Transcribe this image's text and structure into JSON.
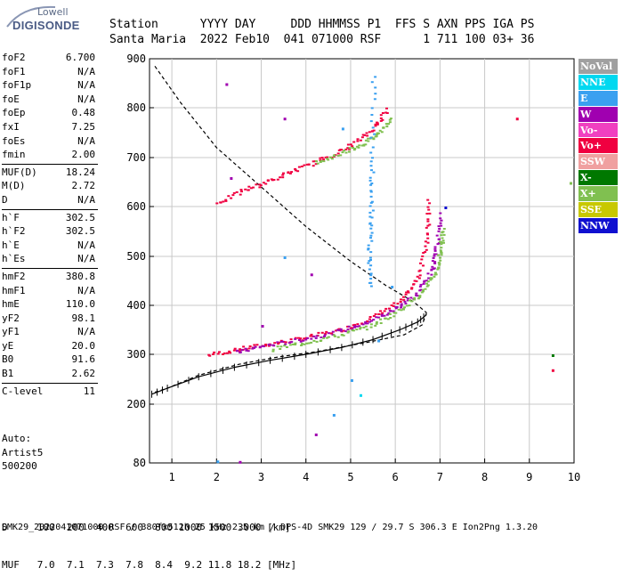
{
  "logo": {
    "line1": "Lowell",
    "line2": "DIGISONDE"
  },
  "header": {
    "line1": "Station      YYYY DAY     DDD HHMMSS P1  FFS S AXN PPS IGA PS",
    "line2": "Santa Maria  2022 Feb10  041 071000 RSF      1 711 100 03+ 36"
  },
  "params": [
    {
      "name": "foF2",
      "value": "6.700"
    },
    {
      "name": "foF1",
      "value": "N/A"
    },
    {
      "name": "foF1p",
      "value": "N/A"
    },
    {
      "name": "foE",
      "value": "N/A"
    },
    {
      "name": "foEp",
      "value": "0.48"
    },
    {
      "name": "fxI",
      "value": "7.25"
    },
    {
      "name": "foEs",
      "value": "N/A"
    },
    {
      "name": "fmin",
      "value": "2.00"
    },
    {
      "name": "MUF(D)",
      "value": "18.24"
    },
    {
      "name": "M(D)",
      "value": "2.72"
    },
    {
      "name": "D",
      "value": "N/A"
    },
    {
      "name": "h`F",
      "value": "302.5"
    },
    {
      "name": "h`F2",
      "value": "302.5"
    },
    {
      "name": "h`E",
      "value": "N/A"
    },
    {
      "name": "h`Es",
      "value": "N/A"
    },
    {
      "name": "hmF2",
      "value": "380.8"
    },
    {
      "name": "hmF1",
      "value": "N/A"
    },
    {
      "name": "hmE",
      "value": "110.0"
    },
    {
      "name": "yF2",
      "value": "98.1"
    },
    {
      "name": "yF1",
      "value": "N/A"
    },
    {
      "name": "yE",
      "value": "20.0"
    },
    {
      "name": "B0",
      "value": "91.6"
    },
    {
      "name": "B1",
      "value": "2.62"
    },
    {
      "name": "C-level",
      "value": "11"
    }
  ],
  "auto": {
    "line1": "Auto:",
    "line2": "Artist5",
    "line3": "500200"
  },
  "dtable": {
    "line1": "D     100  200  400  600  800 1000 1500 3000 [km]",
    "line2": "MUF   7.0  7.1  7.3  7.8  8.4  9.2 11.8 18.2 [MHz]"
  },
  "footer": "SMK29_2022041071000.RSF / 380fx512h 25 kHz 2.5 km / DPS-4D SMK29 129 / 29.7 S 306.3 E Ion2Png 1.3.20",
  "legend": [
    {
      "label": "NoVal",
      "color": "#a0a0a0"
    },
    {
      "label": "NNE",
      "color": "#00d8f0"
    },
    {
      "label": "E",
      "color": "#3aa0f0"
    },
    {
      "label": "W",
      "color": "#a000b0"
    },
    {
      "label": "Vo-",
      "color": "#f040c0"
    },
    {
      "label": "Vo+",
      "color": "#f00040"
    },
    {
      "label": "SSW",
      "color": "#f0a0a0"
    },
    {
      "label": "X-",
      "color": "#007800"
    },
    {
      "label": "X+",
      "color": "#80c050"
    },
    {
      "label": "SSE",
      "color": "#c8c800"
    },
    {
      "label": "NNW",
      "color": "#1010d0"
    }
  ],
  "chart_data": {
    "type": "scatter",
    "xlim": [
      0.5,
      10
    ],
    "xticks": [
      "1",
      "2",
      "3",
      "4",
      "5",
      "6",
      "7",
      "8",
      "9",
      "10"
    ],
    "yticks": [
      "80",
      "200",
      "300",
      "400",
      "500",
      "600",
      "700",
      "800",
      "900"
    ],
    "grid": true,
    "series": [
      {
        "name": "Vo+",
        "color": "#f00040",
        "x": [
          1.8,
          2.5,
          3.2,
          4.0,
          4.8,
          5.5,
          6.1,
          6.5,
          6.7,
          6.72
        ],
        "y": [
          300,
          312,
          323,
          336,
          352,
          378,
          410,
          460,
          540,
          620
        ]
      },
      {
        "name": "W",
        "color": "#a000b0",
        "x": [
          2.4,
          3.0,
          3.8,
          4.6,
          5.3,
          5.9,
          6.4,
          6.8,
          6.9,
          7.0
        ],
        "y": [
          305,
          318,
          330,
          346,
          364,
          390,
          420,
          470,
          520,
          590
        ]
      },
      {
        "name": "X+",
        "color": "#80c050",
        "x": [
          3.2,
          4.0,
          4.8,
          5.5,
          6.1,
          6.6,
          6.9,
          7.0,
          7.05
        ],
        "y": [
          312,
          326,
          342,
          362,
          392,
          430,
          470,
          520,
          560
        ]
      },
      {
        "name": "Vo+ (2-hop)",
        "color": "#f00040",
        "x": [
          2.0,
          2.6,
          3.2,
          3.8,
          4.4,
          5.0,
          5.5,
          5.8
        ],
        "y": [
          608,
          635,
          655,
          678,
          700,
          726,
          760,
          800
        ]
      },
      {
        "name": "X+ (2-hop)",
        "color": "#80c050",
        "x": [
          4.2,
          4.8,
          5.3,
          5.6,
          5.9
        ],
        "y": [
          690,
          712,
          730,
          752,
          780
        ]
      },
      {
        "name": "E",
        "color": "#3aa0f0",
        "x": [
          5.4,
          5.4,
          5.45,
          5.45,
          5.5
        ],
        "y": [
          440,
          520,
          600,
          700,
          880
        ]
      }
    ]
  }
}
